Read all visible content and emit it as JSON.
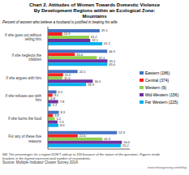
{
  "chart_data": {
    "type": "bar",
    "orientation": "horizontal",
    "title": "Chart 2. Attitudes of Women Towards Domestic Violence\nBy Development Regions within an Ecological Zone:\nMountains",
    "subtitle": "Percent of women who believe a husband is justified in beating his wife.",
    "annotations": [
      "NB: The percentages for a region DON'T add up to 100 because of the nature of the questions. Figures inside\nbrackets in the legend represent total number of respondents.",
      "Source: Multiple Indicator Cluster Survey 2014.",
      "www.dorjegurung.com/blog"
    ],
    "categories": [
      "If she goes out without\ntelling him",
      "If she neglects the\nchildren",
      "If she argues with him",
      "If she refuses sex with\nhim",
      "If she burns the food",
      "For any of these five\nreasons"
    ],
    "series": [
      {
        "name": "Eastern (186)",
        "color": "#4472C4",
        "values": [
          39.2,
          44.9,
          22.5,
          6.5,
          8.3,
          52.3
        ]
      },
      {
        "name": "Central (374)",
        "color": "#FF2020",
        "values": [
          10.9,
          20.4,
          11.5,
          3.5,
          3.8,
          22.6
        ]
      },
      {
        "name": "Western (9)",
        "color": "#92D050",
        "values": [
          31.2,
          37.1,
          11.0,
          0.8,
          5.2,
          41.3
        ],
        "value_labels": [
          "31.2",
          "37.1",
          "11.0",
          "0.8",
          "5.2",
          "41.3"
        ]
      },
      {
        "name": "Mid-Western (156)",
        "color": "#7030A0",
        "values": [
          32.1,
          45.1,
          34.0,
          7.8,
          7.3,
          56.0
        ],
        "value_labels": [
          "32.1",
          "45.1",
          "34.0",
          "7.8",
          "7.3",
          "56.0"
        ]
      },
      {
        "name": "Far Western (225)",
        "color": "#00B0F0",
        "values": [
          41.2,
          45.0,
          28.9,
          2.2,
          8.0,
          55.2
        ],
        "value_labels": [
          "41.2",
          "45.0",
          "28.9",
          "2.2",
          "8.0",
          "55.2"
        ]
      }
    ],
    "xlim": [
      0,
      62
    ],
    "data_labels": true,
    "tick_labels": "y",
    "legend": "right",
    "grid": false
  }
}
